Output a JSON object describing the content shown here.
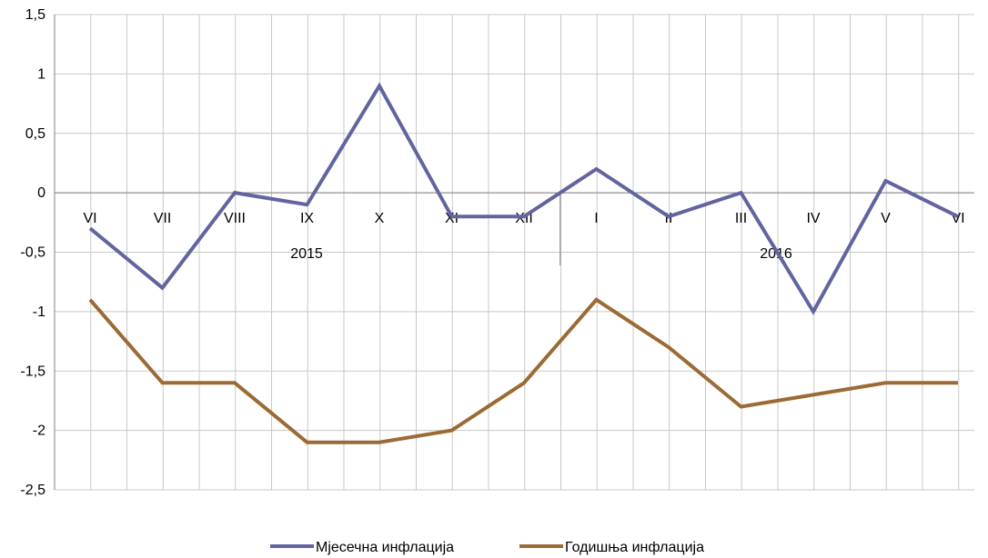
{
  "chart_data": {
    "type": "line",
    "categories": [
      "VI",
      "VII",
      "VIII",
      "IX",
      "X",
      "XI",
      "XII",
      "I",
      "II",
      "III",
      "IV",
      "V",
      "VI"
    ],
    "year_labels": [
      "2015",
      "2016"
    ],
    "series": [
      {
        "name": "Мјесечна инфлација",
        "color": "#6264a0",
        "values": [
          -0.3,
          -0.8,
          0.0,
          -0.1,
          0.9,
          -0.2,
          -0.2,
          0.2,
          -0.2,
          0.0,
          -1.0,
          0.1,
          -0.2
        ]
      },
      {
        "name": "Годишња инфлација",
        "color": "#9c6a35",
        "values": [
          -0.9,
          -1.6,
          -1.6,
          -2.1,
          -2.1,
          -2.0,
          -1.6,
          -0.9,
          -1.3,
          -1.8,
          -1.7,
          -1.6,
          -1.6
        ]
      }
    ],
    "y_ticks": [
      "1,5",
      "1",
      "0,5",
      "0",
      "-0,5",
      "-1",
      "-1,5",
      "-2",
      "-2,5"
    ],
    "ylim": [
      -2.5,
      1.5
    ],
    "grid": true,
    "legend_position": "bottom"
  }
}
